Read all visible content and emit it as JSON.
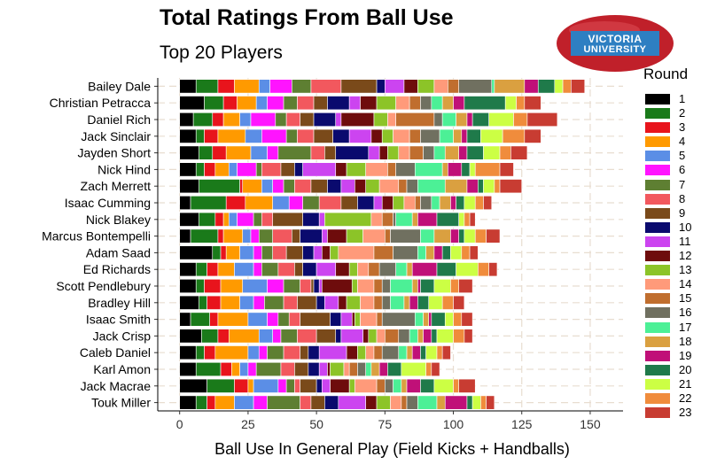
{
  "title": "Total Ratings From Ball Use",
  "subtitle": "Top 20 Players",
  "logo": {
    "line1": "VICTORIA",
    "line2": "UNIVERSITY",
    "ball_color": "#c0202a",
    "banner_color": "#2e7fc2"
  },
  "chart_data": {
    "type": "bar",
    "orientation": "horizontal",
    "stacked": true,
    "xlabel": "Ball Use In General Play (Field Kicks + Handballs)",
    "ylabel": "",
    "xlim": [
      -8,
      162
    ],
    "xticks": [
      0,
      25,
      50,
      75,
      100,
      125,
      150
    ],
    "grid": "dashed vertical",
    "legend_title": "Round",
    "legend_position": "right",
    "series": [
      {
        "name": "1",
        "color": "#000000"
      },
      {
        "name": "2",
        "color": "#1a7a1a"
      },
      {
        "name": "3",
        "color": "#e8141c"
      },
      {
        "name": "4",
        "color": "#ff9a00"
      },
      {
        "name": "5",
        "color": "#5b8ee6"
      },
      {
        "name": "6",
        "color": "#ff14ff"
      },
      {
        "name": "7",
        "color": "#5e7f32"
      },
      {
        "name": "8",
        "color": "#f2585e"
      },
      {
        "name": "9",
        "color": "#7a4a1a"
      },
      {
        "name": "10",
        "color": "#0a0a6e"
      },
      {
        "name": "11",
        "color": "#cc44f0"
      },
      {
        "name": "12",
        "color": "#6e0c0c"
      },
      {
        "name": "13",
        "color": "#8cc428"
      },
      {
        "name": "14",
        "color": "#ff9a7a"
      },
      {
        "name": "15",
        "color": "#c06e2e"
      },
      {
        "name": "16",
        "color": "#707060"
      },
      {
        "name": "17",
        "color": "#4cf096"
      },
      {
        "name": "18",
        "color": "#daa040"
      },
      {
        "name": "19",
        "color": "#c01078"
      },
      {
        "name": "20",
        "color": "#1f7a4a"
      },
      {
        "name": "21",
        "color": "#ccff44"
      },
      {
        "name": "22",
        "color": "#f08c3c"
      },
      {
        "name": "23",
        "color": "#c83c32"
      }
    ],
    "players": [
      {
        "name": "Bailey Dale",
        "segments": [
          6,
          8,
          6,
          9,
          4,
          8,
          7,
          11,
          13,
          3,
          7,
          5,
          6,
          5,
          4,
          12,
          1,
          11,
          5,
          6,
          3,
          3,
          5
        ]
      },
      {
        "name": "Christian Petracca",
        "segments": [
          9,
          7,
          5,
          7,
          4,
          6,
          5,
          6,
          5,
          8,
          4,
          6,
          7,
          5,
          4,
          4,
          4,
          4,
          4,
          15,
          4,
          3,
          6
        ]
      },
      {
        "name": "Daniel Rich",
        "segments": [
          5,
          7,
          4,
          6,
          4,
          9,
          4,
          5,
          5,
          8,
          2,
          12,
          5,
          3,
          14,
          3,
          5,
          4,
          2,
          6,
          9,
          5,
          11
        ]
      },
      {
        "name": "Jack Sinclair",
        "segments": [
          6,
          3,
          5,
          10,
          6,
          9,
          4,
          6,
          7,
          6,
          8,
          4,
          4,
          6,
          4,
          7,
          5,
          3,
          2,
          5,
          8,
          8,
          6
        ]
      },
      {
        "name": "Jayden Short",
        "segments": [
          7,
          5,
          5,
          9,
          6,
          4,
          12,
          5,
          4,
          12,
          4,
          3,
          4,
          4,
          5,
          4,
          4,
          5,
          3,
          6,
          6,
          4,
          6
        ]
      },
      {
        "name": "Nick Hind",
        "segments": [
          6,
          3,
          4,
          5,
          3,
          7,
          2,
          7,
          5,
          3,
          12,
          4,
          7,
          8,
          3,
          7,
          10,
          2,
          5,
          3,
          2,
          9,
          5
        ]
      },
      {
        "name": "Zach Merrett",
        "segments": [
          7,
          15,
          1,
          7,
          4,
          4,
          4,
          6,
          6,
          5,
          5,
          4,
          5,
          7,
          3,
          4,
          10,
          8,
          4,
          2,
          4,
          2,
          8
        ]
      },
      {
        "name": "Isaac Cumming",
        "segments": [
          4,
          13,
          7,
          10,
          6,
          5,
          6,
          8,
          6,
          6,
          3,
          4,
          4,
          4,
          2,
          4,
          3,
          4,
          2,
          3,
          4,
          3,
          3
        ]
      },
      {
        "name": "Nick Blakey",
        "segments": [
          7,
          6,
          3,
          2,
          3,
          6,
          3,
          4,
          11,
          6,
          2,
          0,
          17,
          4,
          4,
          1,
          6,
          2,
          7,
          8,
          2,
          2,
          2
        ]
      },
      {
        "name": "Marcus Bontempelli",
        "segments": [
          4,
          10,
          2,
          7,
          3,
          3,
          5,
          7,
          3,
          8,
          2,
          7,
          6,
          8,
          2,
          11,
          5,
          6,
          3,
          2,
          4,
          4,
          5
        ]
      },
      {
        "name": "Adam Saad",
        "segments": [
          12,
          3,
          2,
          5,
          5,
          3,
          4,
          5,
          6,
          4,
          3,
          3,
          3,
          13,
          7,
          9,
          3,
          3,
          3,
          3,
          4,
          3,
          3
        ]
      },
      {
        "name": "Ed Richards",
        "segments": [
          6,
          4,
          4,
          6,
          7,
          3,
          6,
          6,
          3,
          5,
          7,
          5,
          3,
          4,
          4,
          6,
          4,
          2,
          9,
          7,
          8,
          4,
          3
        ]
      },
      {
        "name": "Scott Pendlebury",
        "segments": [
          6,
          3,
          6,
          8,
          9,
          6,
          6,
          4,
          1,
          2,
          1,
          11,
          2,
          6,
          3,
          3,
          8,
          2,
          1,
          5,
          6,
          3,
          5
        ]
      },
      {
        "name": "Bradley Hill",
        "segments": [
          7,
          3,
          5,
          7,
          5,
          4,
          7,
          5,
          7,
          3,
          5,
          3,
          5,
          5,
          3,
          3,
          5,
          2,
          3,
          4,
          5,
          4,
          4
        ]
      },
      {
        "name": "Isaac Smith",
        "segments": [
          4,
          7,
          3,
          11,
          7,
          4,
          4,
          4,
          11,
          4,
          4,
          1,
          2,
          6,
          2,
          12,
          3,
          2,
          1,
          5,
          3,
          3,
          4
        ]
      },
      {
        "name": "Jack Crisp",
        "segments": [
          8,
          6,
          4,
          11,
          5,
          3,
          6,
          7,
          7,
          2,
          8,
          2,
          3,
          3,
          5,
          4,
          3,
          2,
          3,
          2,
          6,
          4,
          3
        ]
      },
      {
        "name": "Caleb Daniel",
        "segments": [
          6,
          3,
          4,
          12,
          4,
          3,
          6,
          6,
          3,
          4,
          10,
          4,
          3,
          3,
          3,
          6,
          3,
          2,
          3,
          2,
          4,
          2,
          3
        ]
      },
      {
        "name": "Karl Amon",
        "segments": [
          6,
          9,
          4,
          3,
          3,
          3,
          9,
          5,
          5,
          4,
          3,
          1,
          5,
          2,
          3,
          3,
          2,
          3,
          3,
          5,
          9,
          2,
          3
        ]
      },
      {
        "name": "Jack Macrae",
        "segments": [
          10,
          10,
          5,
          2,
          9,
          3,
          3,
          2,
          6,
          2,
          3,
          7,
          2,
          8,
          3,
          3,
          3,
          2,
          5,
          5,
          7,
          2,
          6
        ]
      },
      {
        "name": "Touk Miller",
        "segments": [
          6,
          4,
          3,
          7,
          7,
          5,
          12,
          4,
          5,
          5,
          10,
          4,
          5,
          4,
          2,
          4,
          7,
          3,
          8,
          2,
          3,
          2,
          3
        ]
      }
    ]
  }
}
